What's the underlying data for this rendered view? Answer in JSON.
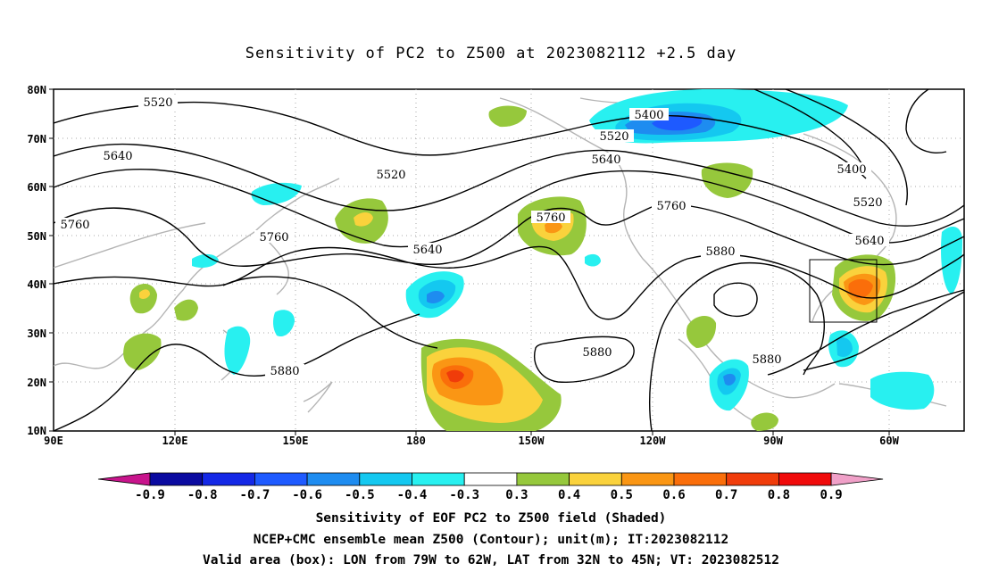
{
  "title": "Sensitivity of PC2 to Z500 at 2023082112 +2.5 day",
  "footer": {
    "line1": "Sensitivity of EOF PC2 to Z500 field (Shaded)",
    "line2": "NCEP+CMC ensemble mean Z500 (Contour); unit(m); IT:2023082112",
    "line3": "Valid area (box): LON from 79W to 62W, LAT from 32N to 45N; VT: 2023082512"
  },
  "axes": {
    "lat_labels": [
      "80N",
      "70N",
      "60N",
      "50N",
      "40N",
      "30N",
      "20N",
      "10N"
    ],
    "lon_labels": [
      "90E",
      "120E",
      "150E",
      "180",
      "150W",
      "120W",
      "90W",
      "60W"
    ]
  },
  "contour_labels": [
    "5400",
    "5520",
    "5640",
    "5760",
    "5880"
  ],
  "colorbar": {
    "labels": [
      "-0.9",
      "-0.8",
      "-0.7",
      "-0.6",
      "-0.5",
      "-0.4",
      "-0.3",
      "0.3",
      "0.4",
      "0.5",
      "0.6",
      "0.7",
      "0.8",
      "0.9"
    ],
    "colors": [
      "#0a0aa0",
      "#1428e6",
      "#1e5aff",
      "#1e8cf0",
      "#14c8f0",
      "#28f0f0",
      "#ffffff",
      "#96c83c",
      "#fad23c",
      "#fa9614",
      "#fa6e0a",
      "#f03c0a",
      "#f00a0a"
    ],
    "low_extension_color": "#c8148c",
    "high_extension_color": "#f0a0c8"
  },
  "valid_box": {
    "lon_from": "79W",
    "lon_to": "62W",
    "lat_from": "32N",
    "lat_to": "45N"
  }
}
